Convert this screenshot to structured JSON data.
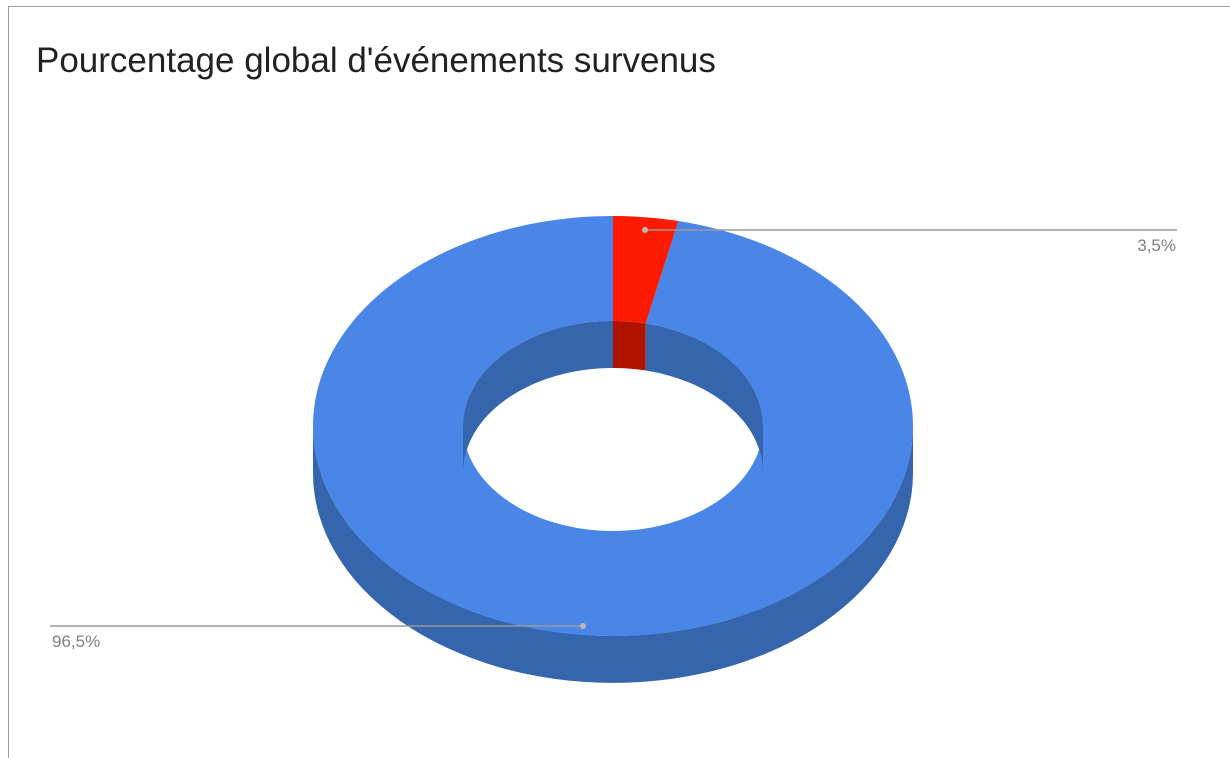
{
  "chart_data": {
    "type": "pie",
    "variant": "3d-donut",
    "title": "Pourcentage global d'événements survenus",
    "slices": [
      {
        "value": 3.5,
        "label": "3,5%",
        "color": "#ff1a00",
        "side_color": "#b01200",
        "label_side": "right"
      },
      {
        "value": 96.5,
        "label": "96,5%",
        "color": "#4a86e8",
        "side_color": "#3465ad",
        "label_side": "left"
      }
    ],
    "legend": "none"
  }
}
